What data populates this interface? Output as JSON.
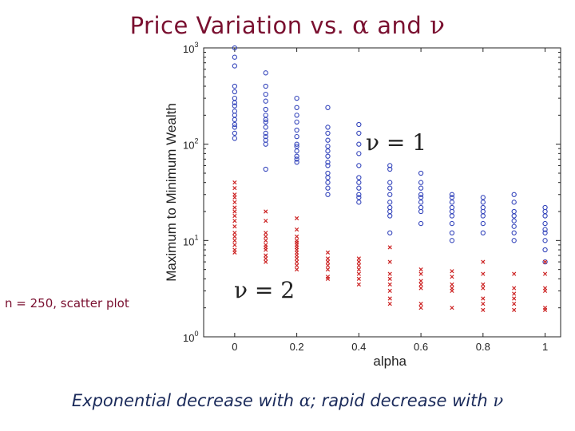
{
  "title": {
    "prefix": "Price Variation vs.",
    "alpha": "α",
    "and": "and",
    "nu": "ν"
  },
  "side_note": "n = 250, scatter plot",
  "caption": {
    "text1": "Exponential decrease with",
    "alpha": "α",
    "text2": "; rapid decrease with",
    "nu": "ν"
  },
  "colors": {
    "title": "#7a1030",
    "caption": "#1a2a5a",
    "series_nu1": "#3344bb",
    "series_nu2": "#cc2222"
  },
  "chart_data": {
    "type": "scatter",
    "xlabel": "alpha",
    "ylabel": "Maximum to Minimum Wealth",
    "xlim": [
      -0.1,
      1.05
    ],
    "ylim": [
      1,
      1000
    ],
    "yscale": "log",
    "xticks": [
      "0",
      "0.2",
      "0.4",
      "0.6",
      "0.8",
      "1"
    ],
    "xtick_values": [
      0,
      0.2,
      0.4,
      0.6,
      0.8,
      1
    ],
    "yticks": [
      {
        "base": "10",
        "exp": "0"
      },
      {
        "base": "10",
        "exp": "1"
      },
      {
        "base": "10",
        "exp": "2"
      },
      {
        "base": "10",
        "exp": "3"
      }
    ],
    "ytick_values": [
      1,
      10,
      100,
      1000
    ],
    "annotations": [
      {
        "label": "ν = 1",
        "series": "nu=1"
      },
      {
        "label": "ν = 2",
        "series": "nu=2"
      }
    ],
    "series": [
      {
        "name": "nu=1",
        "marker": "o",
        "points": [
          {
            "x": 0,
            "y": [
              1000,
              800,
              650,
              400,
              350,
              300,
              270,
              250,
              220,
              200,
              180,
              160,
              150,
              130,
              115
            ]
          },
          {
            "x": 0.1,
            "y": [
              550,
              400,
              330,
              280,
              230,
              200,
              180,
              170,
              150,
              130,
              120,
              110,
              100,
              55
            ]
          },
          {
            "x": 0.2,
            "y": [
              300,
              240,
              200,
              170,
              140,
              120,
              100,
              95,
              85,
              75,
              70,
              65
            ]
          },
          {
            "x": 0.3,
            "y": [
              240,
              150,
              130,
              110,
              95,
              85,
              75,
              65,
              60,
              50,
              45,
              40,
              35,
              30
            ]
          },
          {
            "x": 0.4,
            "y": [
              160,
              130,
              100,
              80,
              60,
              45,
              40,
              35,
              30,
              28,
              25
            ]
          },
          {
            "x": 0.5,
            "y": [
              60,
              55,
              40,
              35,
              30,
              25,
              22,
              20,
              18,
              12
            ]
          },
          {
            "x": 0.6,
            "y": [
              50,
              40,
              35,
              30,
              28,
              25,
              22,
              20,
              15
            ]
          },
          {
            "x": 0.7,
            "y": [
              30,
              28,
              25,
              22,
              20,
              18,
              15,
              12,
              10
            ]
          },
          {
            "x": 0.8,
            "y": [
              28,
              25,
              22,
              20,
              18,
              15,
              12
            ]
          },
          {
            "x": 0.9,
            "y": [
              30,
              25,
              20,
              18,
              16,
              14,
              12,
              10
            ]
          },
          {
            "x": 1,
            "y": [
              22,
              20,
              18,
              15,
              13,
              12,
              10,
              8,
              6
            ]
          }
        ]
      },
      {
        "name": "nu=2",
        "marker": "x",
        "points": [
          {
            "x": 0,
            "y": [
              40,
              35,
              30,
              28,
              25,
              22,
              20,
              18,
              16,
              14,
              12,
              11,
              10,
              9,
              8,
              7.5
            ]
          },
          {
            "x": 0.1,
            "y": [
              20,
              16,
              12,
              11,
              10,
              9,
              8.5,
              8,
              7,
              6.5,
              6
            ]
          },
          {
            "x": 0.2,
            "y": [
              17,
              13,
              11,
              10,
              9.5,
              9,
              8.5,
              8,
              7.5,
              7,
              6.5,
              6,
              5.5,
              5
            ]
          },
          {
            "x": 0.3,
            "y": [
              7.5,
              6.5,
              6,
              5.5,
              5,
              4.2,
              4
            ]
          },
          {
            "x": 0.4,
            "y": [
              6.5,
              6,
              5.5,
              5,
              4.5,
              4,
              3.5
            ]
          },
          {
            "x": 0.5,
            "y": [
              8.5,
              6,
              4.5,
              4,
              3.5,
              3,
              2.5,
              2.2
            ]
          },
          {
            "x": 0.6,
            "y": [
              5,
              4.5,
              3.8,
              3.5,
              3.2,
              2.2,
              2
            ]
          },
          {
            "x": 0.7,
            "y": [
              4.8,
              4.2,
              3.5,
              3.2,
              3,
              2
            ]
          },
          {
            "x": 0.8,
            "y": [
              6,
              4.5,
              3.5,
              3.2,
              2.5,
              2.2,
              1.9
            ]
          },
          {
            "x": 0.9,
            "y": [
              4.5,
              3.2,
              2.8,
              2.5,
              2.2,
              1.9
            ]
          },
          {
            "x": 1,
            "y": [
              6,
              4.5,
              3.2,
              3,
              2,
              1.9
            ]
          }
        ]
      }
    ]
  }
}
